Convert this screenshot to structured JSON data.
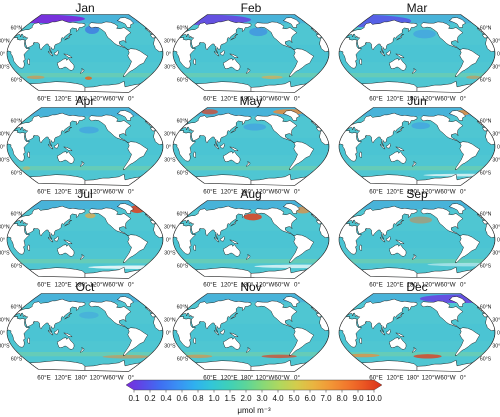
{
  "months": [
    "Jan",
    "Feb",
    "Mar",
    "Apr",
    "May",
    "Jun",
    "Jul",
    "Aug",
    "Sep",
    "Oct",
    "Nov",
    "Dec"
  ],
  "lat_labels": [
    "60°N",
    "30°N",
    "0°",
    "30°S",
    "60°S"
  ],
  "lon_labels": [
    "60°E",
    "120°E",
    "180°",
    "120°W",
    "60°W",
    "0°"
  ],
  "colorbar": {
    "ticks": [
      "0.1",
      "0.2",
      "0.4",
      "0.6",
      "0.8",
      "1.0",
      "1.5",
      "2.0",
      "3.0",
      "4.0",
      "5.0",
      "6.0",
      "7.0",
      "8.0",
      "9.0",
      "10.0"
    ],
    "unit": "μmol m⁻³",
    "colors": [
      "#7a2bdc",
      "#5a4be8",
      "#3f6ef2",
      "#3a8ff4",
      "#2fb0ef",
      "#32c6d8",
      "#3ed0b9",
      "#5bd59a",
      "#86d978",
      "#b0d85e",
      "#d4cc4c",
      "#eab440",
      "#f29636",
      "#f2762c",
      "#ea5422",
      "#d8301a"
    ]
  },
  "palette": {
    "ocean": "#4fc6d2",
    "land": "#ffffff",
    "coast": "#111111",
    "purple": "#6a3fe0",
    "blue": "#3c8fe8",
    "orange": "#f08a34",
    "red": "#e0401f"
  }
}
